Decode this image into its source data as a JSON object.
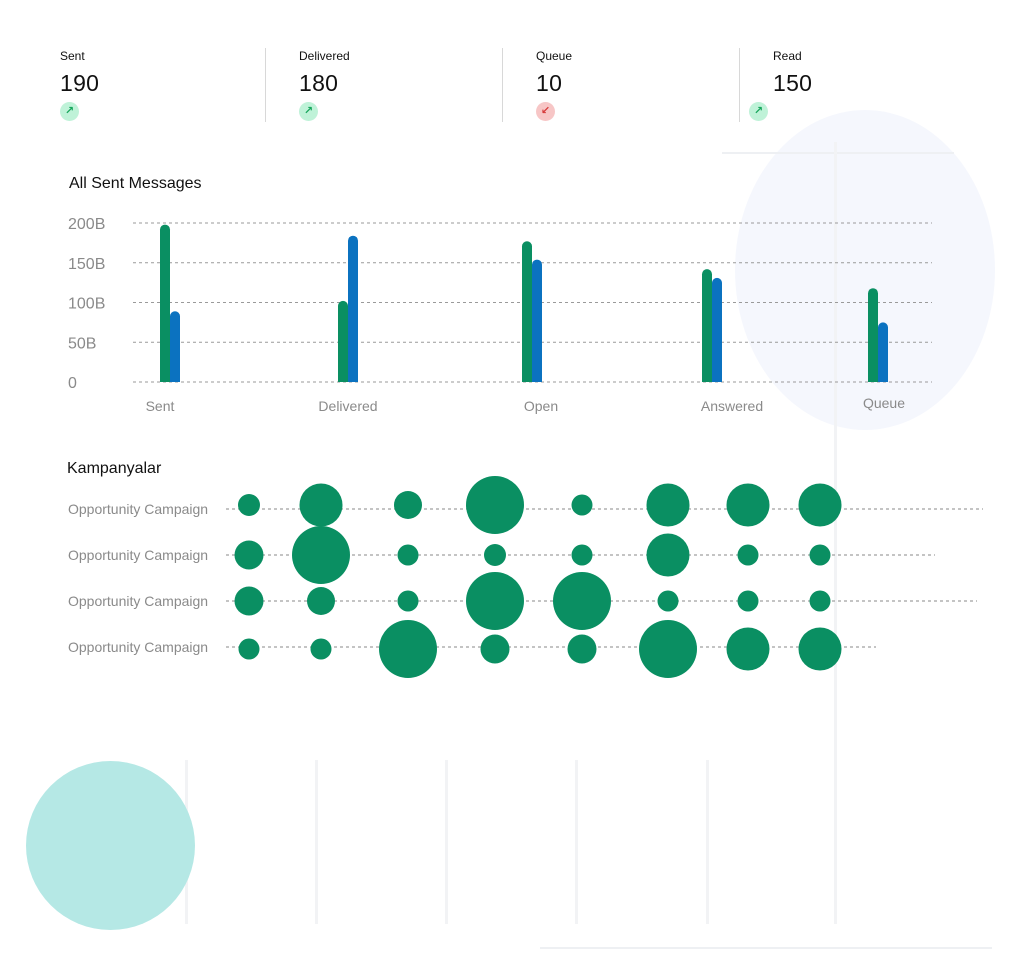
{
  "stats": [
    {
      "label": "Sent",
      "value": "190",
      "trend": "up",
      "trend_icon": "arrow-up-right-icon"
    },
    {
      "label": "Delivered",
      "value": "180",
      "trend": "up",
      "trend_icon": "arrow-up-right-icon"
    },
    {
      "label": "Queue",
      "value": "10",
      "trend": "down",
      "trend_icon": "arrow-down-left-icon"
    },
    {
      "label": "Read",
      "value": "150",
      "trend": "up",
      "trend_icon": "arrow-up-right-icon"
    }
  ],
  "colors": {
    "green": "#0a8f62",
    "blue": "#0b72c0",
    "trend_up_bg": "#bff2d8",
    "trend_down_bg": "#f7c6c6",
    "teal": "#b5e8e5"
  },
  "chart_data": [
    {
      "type": "bar",
      "title": "All Sent Messages",
      "categories": [
        "Sent",
        "Delivered",
        "Open",
        "Answered",
        "Queue"
      ],
      "series": [
        {
          "values": [
            198,
            102,
            177,
            142,
            118
          ]
        },
        {
          "values": [
            89,
            184,
            154,
            131,
            75
          ]
        }
      ],
      "ylim": [
        0,
        200
      ],
      "yticks": [
        {
          "value": 200,
          "label": "200B"
        },
        {
          "value": 150,
          "label": "150B"
        },
        {
          "value": 100,
          "label": "100B"
        },
        {
          "value": 50,
          "label": "50B"
        },
        {
          "value": 0,
          "label": "0"
        }
      ],
      "grid": true,
      "legend": "none"
    },
    {
      "type": "scatter",
      "title": "Kampanyalar",
      "rows": [
        "Opportunity Campaign",
        "Opportunity Campaign",
        "Opportunity Campaign",
        "Opportunity Campaign"
      ],
      "columns": 8,
      "sizes": [
        [
          22,
          43,
          28,
          58,
          21,
          43,
          43,
          43
        ],
        [
          29,
          58,
          21,
          22,
          21,
          43,
          21,
          21
        ],
        [
          29,
          28,
          21,
          58,
          58,
          21,
          21,
          21
        ],
        [
          21,
          21,
          58,
          29,
          29,
          58,
          43,
          43
        ]
      ],
      "grid": true
    }
  ]
}
